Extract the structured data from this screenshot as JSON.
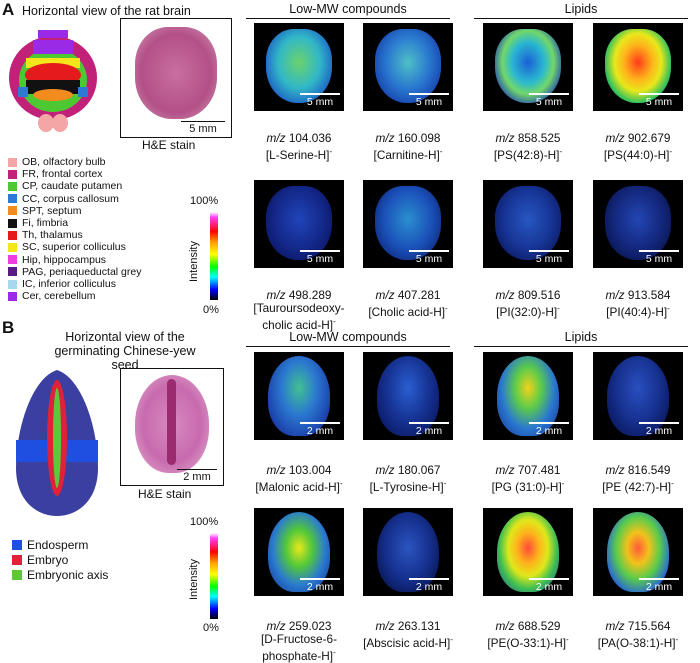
{
  "panelA": {
    "letter": "A",
    "title": "Horizontal view of the rat brain",
    "he_label": "H&E stain",
    "he_scale": "5 mm",
    "group1": "Low-MW compounds",
    "group2": "Lipids",
    "intensity_label": "Intensity",
    "cbar_top": "100%",
    "cbar_bottom": "0%",
    "legend": [
      {
        "label": "OB, olfactory bulb",
        "color": "#f4a6a6"
      },
      {
        "label": "FR, frontal cortex",
        "color": "#c2217a"
      },
      {
        "label": "CP, caudate putamen",
        "color": "#4ec832"
      },
      {
        "label": "CC, corpus callosum",
        "color": "#2e78d6"
      },
      {
        "label": "SPT, septum",
        "color": "#f28c1f"
      },
      {
        "label": "Fi, fimbria",
        "color": "#111111"
      },
      {
        "label": "Th, thalamus",
        "color": "#e41a1c"
      },
      {
        "label": "SC, superior colliculus",
        "color": "#f4e61b"
      },
      {
        "label": "Hip, hippocampus",
        "color": "#ee3ee0"
      },
      {
        "label": "PAG, periaqueductal grey",
        "color": "#5a1a86"
      },
      {
        "label": "IC, inferior colliculus",
        "color": "#a8d8f0"
      },
      {
        "label": "Cer, cerebellum",
        "color": "#9a2ae6"
      }
    ],
    "images": [
      {
        "scale": "5 mm",
        "mz_prefix": "m/z",
        "mz": "104.036",
        "ion": "[L-Serine-H]",
        "ion2": ""
      },
      {
        "scale": "5 mm",
        "mz_prefix": "m/z",
        "mz": "160.098",
        "ion": "[Carnitine-H]",
        "ion2": ""
      },
      {
        "scale": "5 mm",
        "mz_prefix": "m/z",
        "mz": "858.525",
        "ion": "[PS(42:8)-H]",
        "ion2": ""
      },
      {
        "scale": "5 mm",
        "mz_prefix": "m/z",
        "mz": "902.679",
        "ion": "[PS(44:0)-H]",
        "ion2": ""
      },
      {
        "scale": "5 mm",
        "mz_prefix": "m/z",
        "mz": "498.289",
        "ion": "[Tauroursodeoxy-",
        "ion2": "cholic acid-H]"
      },
      {
        "scale": "5 mm",
        "mz_prefix": "m/z",
        "mz": "407.281",
        "ion": "[Cholic acid-H]",
        "ion2": ""
      },
      {
        "scale": "5 mm",
        "mz_prefix": "m/z",
        "mz": "809.516",
        "ion": "[PI(32:0)-H]",
        "ion2": ""
      },
      {
        "scale": "5 mm",
        "mz_prefix": "m/z",
        "mz": "913.584",
        "ion": "[PI(40:4)-H]",
        "ion2": ""
      }
    ]
  },
  "panelB": {
    "letter": "B",
    "title_line1": "Horizontal view of the",
    "title_line2": "germinating Chinese-yew seed",
    "he_label": "H&E stain",
    "he_scale": "2 mm",
    "group1": "Low-MW compounds",
    "group2": "Lipids",
    "intensity_label": "Intensity",
    "cbar_top": "100%",
    "cbar_bottom": "0%",
    "legend": [
      {
        "label": "Endosperm",
        "color": "#1f4fe0"
      },
      {
        "label": "Embryo",
        "color": "#e0213a"
      },
      {
        "label": "Embryonic axis",
        "color": "#5cc83a"
      }
    ],
    "images": [
      {
        "scale": "2 mm",
        "mz_prefix": "m/z",
        "mz": "103.004",
        "ion": "[Malonic acid-H]",
        "ion2": ""
      },
      {
        "scale": "2 mm",
        "mz_prefix": "m/z",
        "mz": "180.067",
        "ion": "[L-Tyrosine-H]",
        "ion2": ""
      },
      {
        "scale": "2 mm",
        "mz_prefix": "m/z",
        "mz": "707.481",
        "ion": "[PG (31:0)-H]",
        "ion2": ""
      },
      {
        "scale": "2 mm",
        "mz_prefix": "m/z",
        "mz": "816.549",
        "ion": "[PE (42:7)-H]",
        "ion2": ""
      },
      {
        "scale": "2 mm",
        "mz_prefix": "m/z",
        "mz": "259.023",
        "ion": "[D-Fructose-6-",
        "ion2": "phosphate-H]"
      },
      {
        "scale": "2 mm",
        "mz_prefix": "m/z",
        "mz": "263.131",
        "ion": "[Abscisic acid-H]",
        "ion2": ""
      },
      {
        "scale": "2 mm",
        "mz_prefix": "m/z",
        "mz": "688.529",
        "ion": "[PE(O-33:1)-H]",
        "ion2": ""
      },
      {
        "scale": "2 mm",
        "mz_prefix": "m/z",
        "mz": "715.564",
        "ion": "[PA(O-38:1)-H]",
        "ion2": ""
      }
    ]
  }
}
